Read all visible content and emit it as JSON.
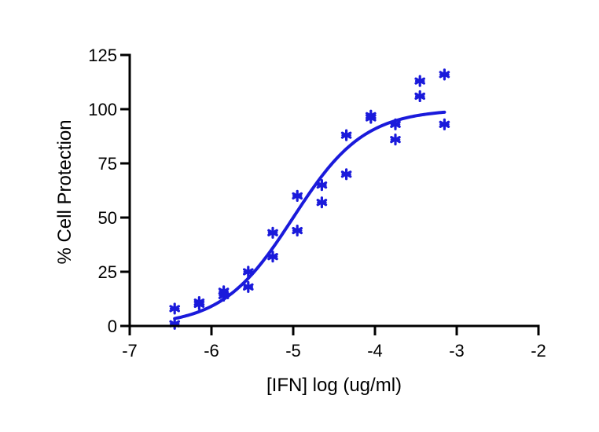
{
  "chart_data": {
    "type": "scatter",
    "title": "",
    "xlabel": "[IFN] log (ug/ml)",
    "ylabel": "% Cell Protection",
    "xlim": [
      -7,
      -2
    ],
    "ylim": [
      0,
      125
    ],
    "xticks": [
      -7,
      -6,
      -5,
      -4,
      -3,
      -2
    ],
    "xtick_labels": [
      "-7",
      "-6",
      "-5",
      "-4",
      "-3",
      "-2"
    ],
    "yticks": [
      0,
      25,
      50,
      75,
      100,
      125
    ],
    "ytick_labels": [
      "0",
      "25",
      "50",
      "75",
      "100",
      "125"
    ],
    "grid": false,
    "legend": "none",
    "marker": "asterisk",
    "color": "#1a1adb",
    "points": [
      {
        "x": -6.45,
        "y": 8
      },
      {
        "x": -6.45,
        "y": 1
      },
      {
        "x": -6.15,
        "y": 11
      },
      {
        "x": -6.15,
        "y": 10
      },
      {
        "x": -5.85,
        "y": 16
      },
      {
        "x": -5.85,
        "y": 14
      },
      {
        "x": -5.55,
        "y": 25
      },
      {
        "x": -5.55,
        "y": 18
      },
      {
        "x": -5.25,
        "y": 43
      },
      {
        "x": -5.25,
        "y": 32
      },
      {
        "x": -4.95,
        "y": 60
      },
      {
        "x": -4.95,
        "y": 44
      },
      {
        "x": -4.65,
        "y": 65
      },
      {
        "x": -4.65,
        "y": 57
      },
      {
        "x": -4.35,
        "y": 88
      },
      {
        "x": -4.35,
        "y": 70
      },
      {
        "x": -4.05,
        "y": 97
      },
      {
        "x": -4.05,
        "y": 96
      },
      {
        "x": -3.75,
        "y": 93
      },
      {
        "x": -3.75,
        "y": 86
      },
      {
        "x": -3.45,
        "y": 113
      },
      {
        "x": -3.45,
        "y": 106
      },
      {
        "x": -3.15,
        "y": 116
      },
      {
        "x": -3.15,
        "y": 93
      }
    ],
    "fit_curve": {
      "type": "sigmoidal dose-response",
      "x_range": [
        -6.45,
        -3.15
      ],
      "bottom": 0,
      "top": 100,
      "log_ec50": -5.0,
      "hill_slope": 1.0
    }
  }
}
